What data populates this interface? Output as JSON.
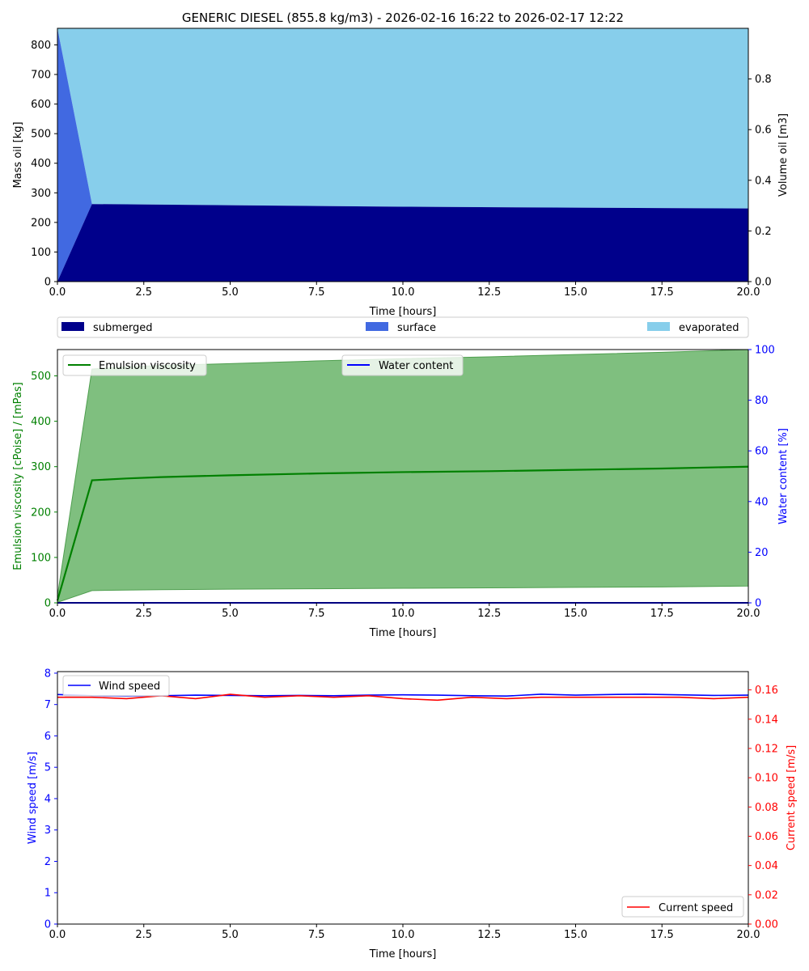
{
  "title": "GENERIC DIESEL (855.8 kg/m3) - 2026-02-16 16:22 to 2026-02-17 12:22",
  "colors": {
    "submerged": "#00008b",
    "surface": "#4169e1",
    "evaporated": "#87ceeb",
    "viscosity": "#008000",
    "viscosity_band": "#7fbf7f",
    "water": "#0000ff",
    "wind": "#0000ff",
    "current": "#ff0000"
  },
  "chart_data": [
    {
      "type": "area",
      "id": "mass",
      "xlabel": "Time  [hours]",
      "ylabel": "Mass oil  [kg]",
      "y2label": "Volume oil [m3]",
      "xlim": [
        0,
        20
      ],
      "ylim": [
        0,
        856
      ],
      "y2lim": [
        0,
        1.0
      ],
      "xticks": [
        "0.0",
        "2.5",
        "5.0",
        "7.5",
        "10.0",
        "12.5",
        "15.0",
        "17.5",
        "20.0"
      ],
      "yticks": [
        "0",
        "100",
        "200",
        "300",
        "400",
        "500",
        "600",
        "700",
        "800"
      ],
      "y2ticks": [
        "0.0",
        "0.2",
        "0.4",
        "0.6",
        "0.8"
      ],
      "x": [
        0,
        1,
        3,
        7,
        10,
        15,
        20
      ],
      "series": [
        {
          "name": "submerged",
          "values": [
            0,
            262,
            260,
            256,
            253,
            250,
            247
          ]
        },
        {
          "name": "surface",
          "values": [
            856,
            0,
            0,
            0,
            0,
            0,
            0
          ]
        },
        {
          "name": "evaporated",
          "values": [
            0,
            594,
            596,
            600,
            603,
            606,
            609
          ]
        }
      ],
      "legend": {
        "placement": "below",
        "labels": {
          "submerged": "submerged",
          "surface": "surface",
          "evaporated": "evaporated"
        }
      }
    },
    {
      "type": "line",
      "id": "viscosity",
      "xlabel": "Time [hours]",
      "ylabel": "Emulsion viscosity  [cPoise] / [mPas]",
      "y2label": "Water content  [%]",
      "xlim": [
        0,
        20
      ],
      "ylim": [
        0,
        558
      ],
      "y2lim": [
        0,
        100
      ],
      "xticks": [
        "0.0",
        "2.5",
        "5.0",
        "7.5",
        "10.0",
        "12.5",
        "15.0",
        "17.5",
        "20.0"
      ],
      "yticks": [
        "0",
        "100",
        "200",
        "300",
        "400",
        "500"
      ],
      "y2ticks": [
        "0",
        "20",
        "40",
        "60",
        "80",
        "100"
      ],
      "x": [
        0,
        1,
        2,
        3,
        5,
        7.5,
        10,
        12.5,
        15,
        17.5,
        20
      ],
      "viscosity": [
        5,
        270,
        274,
        277,
        281,
        285,
        288,
        290,
        293,
        296,
        300
      ],
      "band_upper": [
        15,
        515,
        520,
        523,
        527,
        533,
        538,
        542,
        547,
        552,
        558
      ],
      "band_lower": [
        1,
        27,
        28,
        29,
        30,
        31,
        32,
        33,
        34,
        35,
        37
      ],
      "water_content": [
        0,
        0,
        0,
        0,
        0,
        0,
        0,
        0,
        0,
        0,
        0
      ],
      "legend": {
        "viscosity": "Emulsion viscosity",
        "water": "Water content"
      }
    },
    {
      "type": "line",
      "id": "wind",
      "xlabel": "Time  [hours]",
      "ylabel": "Wind speed  [m/s]",
      "y2label": "Current speed  [m/s]",
      "xlim": [
        0,
        20
      ],
      "ylim": [
        0,
        8.05
      ],
      "y2lim": [
        0,
        0.1725
      ],
      "xticks": [
        "0.0",
        "2.5",
        "5.0",
        "7.5",
        "10.0",
        "12.5",
        "15.0",
        "17.5",
        "20.0"
      ],
      "yticks": [
        "0",
        "1",
        "2",
        "3",
        "4",
        "5",
        "6",
        "7",
        "8"
      ],
      "y2ticks": [
        "0.00",
        "0.02",
        "0.04",
        "0.06",
        "0.08",
        "0.10",
        "0.12",
        "0.14",
        "0.16"
      ],
      "x": [
        0,
        1,
        2,
        3,
        4,
        5,
        6,
        7,
        8,
        9,
        10,
        11,
        12,
        13,
        14,
        15,
        16,
        17,
        18,
        19,
        20
      ],
      "wind": [
        7.32,
        7.28,
        7.27,
        7.28,
        7.3,
        7.29,
        7.28,
        7.29,
        7.28,
        7.3,
        7.31,
        7.3,
        7.28,
        7.27,
        7.33,
        7.3,
        7.32,
        7.33,
        7.31,
        7.29,
        7.3
      ],
      "current": [
        0.155,
        0.155,
        0.154,
        0.156,
        0.154,
        0.157,
        0.155,
        0.156,
        0.155,
        0.156,
        0.154,
        0.153,
        0.155,
        0.154,
        0.155,
        0.155,
        0.155,
        0.155,
        0.155,
        0.154,
        0.155
      ],
      "legend": {
        "wind": "Wind speed",
        "current": "Current speed"
      }
    }
  ]
}
